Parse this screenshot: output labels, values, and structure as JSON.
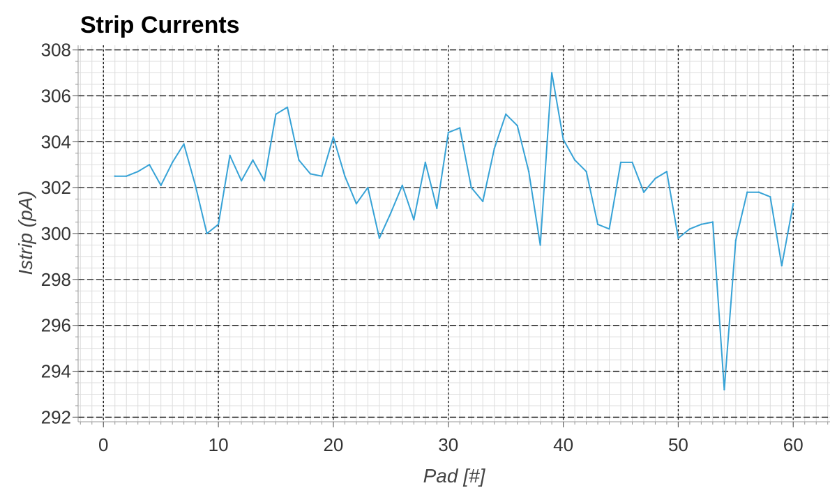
{
  "chart_data": {
    "type": "line",
    "title": "Strip Currents",
    "xlabel": "Pad [#]",
    "ylabel": "Istrip (pA)",
    "xlim": [
      -2.2,
      63.2
    ],
    "ylim": [
      291.8,
      308.2
    ],
    "x_ticks": [
      0,
      10,
      20,
      30,
      40,
      50,
      60
    ],
    "y_ticks": [
      292,
      294,
      296,
      298,
      300,
      302,
      304,
      306,
      308
    ],
    "grid": true,
    "series": [
      {
        "color": "#36a2d6",
        "x": [
          1,
          2,
          3,
          4,
          5,
          6,
          7,
          8,
          9,
          10,
          11,
          12,
          13,
          14,
          15,
          16,
          17,
          18,
          19,
          20,
          21,
          22,
          23,
          24,
          25,
          26,
          27,
          28,
          29,
          30,
          31,
          32,
          33,
          34,
          35,
          36,
          37,
          38,
          39,
          40,
          41,
          42,
          43,
          44,
          45,
          46,
          47,
          48,
          49,
          50,
          51,
          52,
          53,
          54,
          55,
          56,
          57,
          58,
          59,
          60
        ],
        "values": [
          302.5,
          302.5,
          302.7,
          303.0,
          302.1,
          303.1,
          303.9,
          302.1,
          300.0,
          300.4,
          303.4,
          302.3,
          303.2,
          302.3,
          305.2,
          305.5,
          303.2,
          302.6,
          302.5,
          304.2,
          302.5,
          301.3,
          302.0,
          299.8,
          300.9,
          302.1,
          300.6,
          303.1,
          301.1,
          304.4,
          304.6,
          302.0,
          301.4,
          303.7,
          305.2,
          304.7,
          302.7,
          299.5,
          307.0,
          304.1,
          303.2,
          302.7,
          300.4,
          300.2,
          303.1,
          303.1,
          301.8,
          302.4,
          302.7,
          299.8,
          300.2,
          300.4,
          300.5,
          293.2,
          299.7,
          301.8,
          301.8,
          301.6,
          298.6,
          301.3
        ]
      }
    ]
  }
}
